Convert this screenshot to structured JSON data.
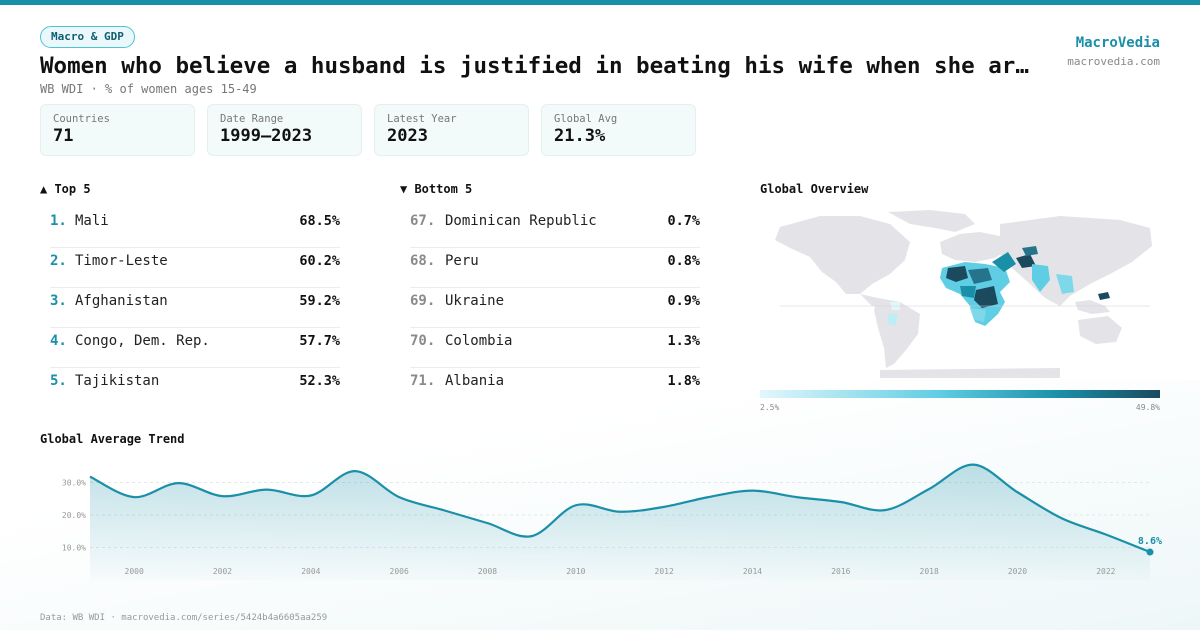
{
  "header": {
    "badge": "Macro & GDP",
    "title": "Women who believe a husband is justified in beating his wife when she ar…",
    "subtitle": "WB WDI · % of women ages 15-49",
    "brand": "MacroVedia",
    "brand_url": "macrovedia.com"
  },
  "stats": [
    {
      "label": "Countries",
      "value": "71"
    },
    {
      "label": "Date Range",
      "value": "1999–2023"
    },
    {
      "label": "Latest Year",
      "value": "2023"
    },
    {
      "label": "Global Avg",
      "value": "21.3%"
    }
  ],
  "top5": {
    "heading": "▲ Top 5",
    "items": [
      {
        "rank": "1.",
        "name": "Mali",
        "value": "68.5%"
      },
      {
        "rank": "2.",
        "name": "Timor-Leste",
        "value": "60.2%"
      },
      {
        "rank": "3.",
        "name": "Afghanistan",
        "value": "59.2%"
      },
      {
        "rank": "4.",
        "name": "Congo, Dem. Rep.",
        "value": "57.7%"
      },
      {
        "rank": "5.",
        "name": "Tajikistan",
        "value": "52.3%"
      }
    ]
  },
  "bottom5": {
    "heading": "▼ Bottom 5",
    "items": [
      {
        "rank": "67.",
        "name": "Dominican Republic",
        "value": "0.7%"
      },
      {
        "rank": "68.",
        "name": "Peru",
        "value": "0.8%"
      },
      {
        "rank": "69.",
        "name": "Ukraine",
        "value": "0.9%"
      },
      {
        "rank": "70.",
        "name": "Colombia",
        "value": "1.3%"
      },
      {
        "rank": "71.",
        "name": "Albania",
        "value": "1.8%"
      }
    ]
  },
  "map": {
    "heading": "Global Overview",
    "legend_min": "2.5%",
    "legend_max": "49.8%",
    "color_low": "#e3f7fb",
    "color_high": "#1b4a5e"
  },
  "trend": {
    "heading": "Global Average Trend"
  },
  "footer": "Data: WB WDI · macrovedia.com/series/5424b4a6605aa259",
  "colors": {
    "accent": "#1a8fa8",
    "line": "#1a8fa8"
  },
  "chart_data": {
    "type": "area",
    "x": [
      1999,
      2000,
      2001,
      2002,
      2003,
      2004,
      2005,
      2006,
      2007,
      2008,
      2009,
      2010,
      2011,
      2012,
      2013,
      2014,
      2015,
      2016,
      2017,
      2018,
      2019,
      2020,
      2021,
      2022,
      2023
    ],
    "series": [
      {
        "values": [
          31.8,
          25.5,
          29.8,
          25.8,
          27.8,
          26.0,
          33.5,
          25.5,
          21.5,
          17.5,
          13.5,
          23.0,
          21.0,
          22.5,
          25.5,
          27.5,
          25.5,
          24.0,
          21.5,
          28.0,
          35.5,
          27.0,
          19.0,
          14.0,
          8.6
        ]
      }
    ],
    "y_ticks": [
      "10.0%",
      "20.0%",
      "30.0%"
    ],
    "y_tick_values": [
      10,
      20,
      30
    ],
    "x_ticks": [
      "2000",
      "2002",
      "2004",
      "2006",
      "2008",
      "2010",
      "2012",
      "2014",
      "2016",
      "2018",
      "2020",
      "2022"
    ],
    "x_tick_values": [
      2000,
      2002,
      2004,
      2006,
      2008,
      2010,
      2012,
      2014,
      2016,
      2018,
      2020,
      2022
    ],
    "last_label": "8.6%",
    "ylim": [
      0,
      40
    ],
    "grid": true
  }
}
